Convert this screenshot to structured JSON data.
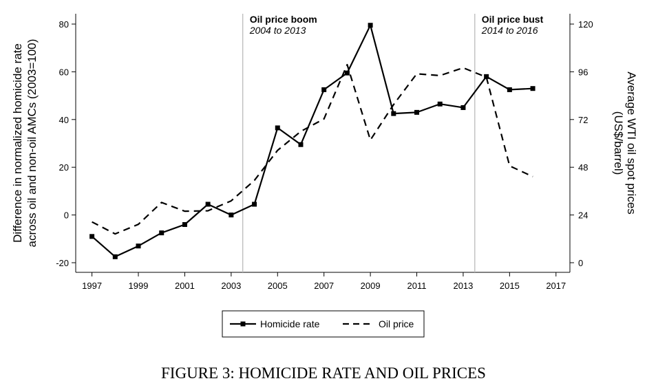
{
  "caption": "FIGURE 3: HOMICIDE RATE AND OIL PRICES",
  "chart_data": {
    "type": "line",
    "y_left_label_line1": "Difference in normalized homicide rate",
    "y_left_label_line2": "across oil and non-oil AMCs (2003=100)",
    "y_right_label_line1": "Average WTI oil spot prices",
    "y_right_label_line2": "(US$/barrel)",
    "x_ticks": [
      1997,
      1999,
      2001,
      2003,
      2005,
      2007,
      2009,
      2011,
      2013,
      2015,
      2017
    ],
    "xlim": [
      1996.3,
      2017.6
    ],
    "y_left_ticks": [
      -20,
      0,
      20,
      40,
      60,
      80
    ],
    "y_left_lim": [
      -20,
      80
    ],
    "y_right_ticks": [
      0,
      24,
      48,
      72,
      96,
      120
    ],
    "y_right_lim": [
      0,
      120
    ],
    "grid": false,
    "legend_position": "bottom-center",
    "series": [
      {
        "name": "Homicide rate",
        "axis": "left",
        "style": "solid",
        "marker": "square",
        "x": [
          1997,
          1998,
          1999,
          2000,
          2001,
          2002,
          2003,
          2004,
          2005,
          2006,
          2007,
          2008,
          2009,
          2010,
          2011,
          2012,
          2013,
          2014,
          2015,
          2016
        ],
        "values": [
          -9,
          -17.5,
          -13,
          -7.5,
          -4,
          4.5,
          0,
          4.5,
          36.5,
          29.5,
          52.5,
          59.5,
          79.5,
          42.5,
          43,
          46.5,
          45,
          58,
          52.5,
          53
        ]
      },
      {
        "name": "Oil price",
        "axis": "right",
        "style": "dashed",
        "marker": "none",
        "x": [
          1997,
          1998,
          1999,
          2000,
          2001,
          2002,
          2003,
          2004,
          2005,
          2006,
          2007,
          2008,
          2009,
          2010,
          2011,
          2012,
          2013,
          2014,
          2015,
          2016
        ],
        "values": [
          20.5,
          14.5,
          19.3,
          30.3,
          25.9,
          26.1,
          31.1,
          41.4,
          56.5,
          66,
          72.3,
          99.6,
          61.7,
          79.5,
          95,
          94.1,
          98,
          93.3,
          48.7,
          43.3
        ]
      }
    ],
    "annotations": [
      {
        "x": 2003.5,
        "title": "Oil price boom",
        "subtitle": "2004 to 2013"
      },
      {
        "x": 2013.5,
        "title": "Oil price bust",
        "subtitle": "2014 to 2016"
      }
    ]
  }
}
